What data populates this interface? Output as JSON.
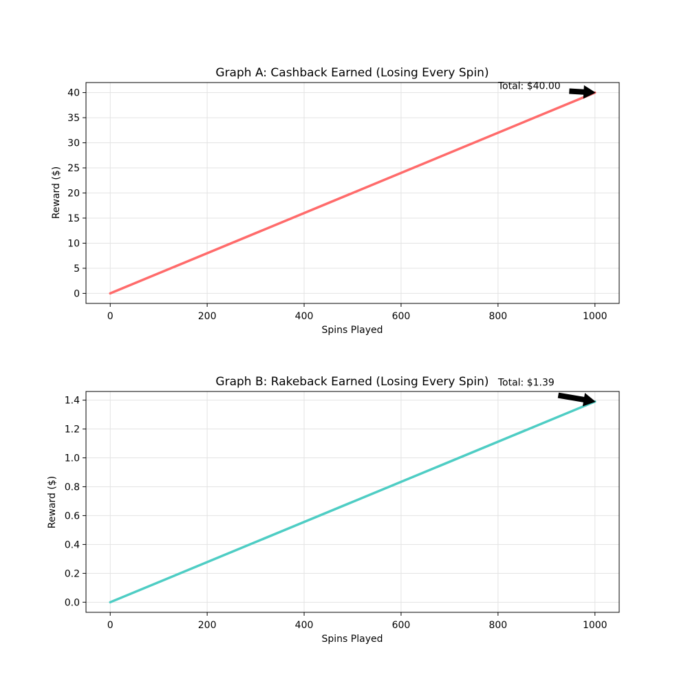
{
  "chart_data": [
    {
      "type": "line",
      "title": "Graph A: Cashback Earned (Losing Every Spin)",
      "xlabel": "Spins Played",
      "ylabel": "Reward ($)",
      "xlim": [
        -50,
        1050
      ],
      "ylim": [
        -2,
        42
      ],
      "xticks": [
        0,
        200,
        400,
        600,
        800,
        1000
      ],
      "xtick_labels": [
        "0",
        "200",
        "400",
        "600",
        "800",
        "1000"
      ],
      "yticks": [
        0,
        5,
        10,
        15,
        20,
        25,
        30,
        35,
        40
      ],
      "ytick_labels": [
        "0",
        "5",
        "10",
        "15",
        "20",
        "25",
        "30",
        "35",
        "40"
      ],
      "grid": true,
      "series": [
        {
          "color": "#ff6b6b",
          "x": [
            0,
            1000
          ],
          "y": [
            0,
            40
          ]
        }
      ],
      "annotation": {
        "text": "Total: $40.00",
        "point": [
          1000,
          40
        ],
        "text_pos": [
          800,
          40.7
        ]
      }
    },
    {
      "type": "line",
      "title": "Graph B: Rakeback Earned (Losing Every Spin)",
      "xlabel": "Spins Played",
      "ylabel": "Reward ($)",
      "xlim": [
        -50,
        1050
      ],
      "ylim": [
        -0.07,
        1.46
      ],
      "xticks": [
        0,
        200,
        400,
        600,
        800,
        1000
      ],
      "xtick_labels": [
        "0",
        "200",
        "400",
        "600",
        "800",
        "1000"
      ],
      "yticks": [
        0.0,
        0.2,
        0.4,
        0.6,
        0.8,
        1.0,
        1.2,
        1.4
      ],
      "ytick_labels": [
        "0.0",
        "0.2",
        "0.4",
        "0.6",
        "0.8",
        "1.0",
        "1.2",
        "1.4"
      ],
      "grid": true,
      "series": [
        {
          "color": "#4ecdc4",
          "x": [
            0,
            1000
          ],
          "y": [
            0,
            1.39
          ]
        }
      ],
      "annotation": {
        "text": "Total: $1.39",
        "point": [
          1000,
          1.39
        ],
        "text_pos": [
          800,
          1.5
        ]
      }
    }
  ]
}
